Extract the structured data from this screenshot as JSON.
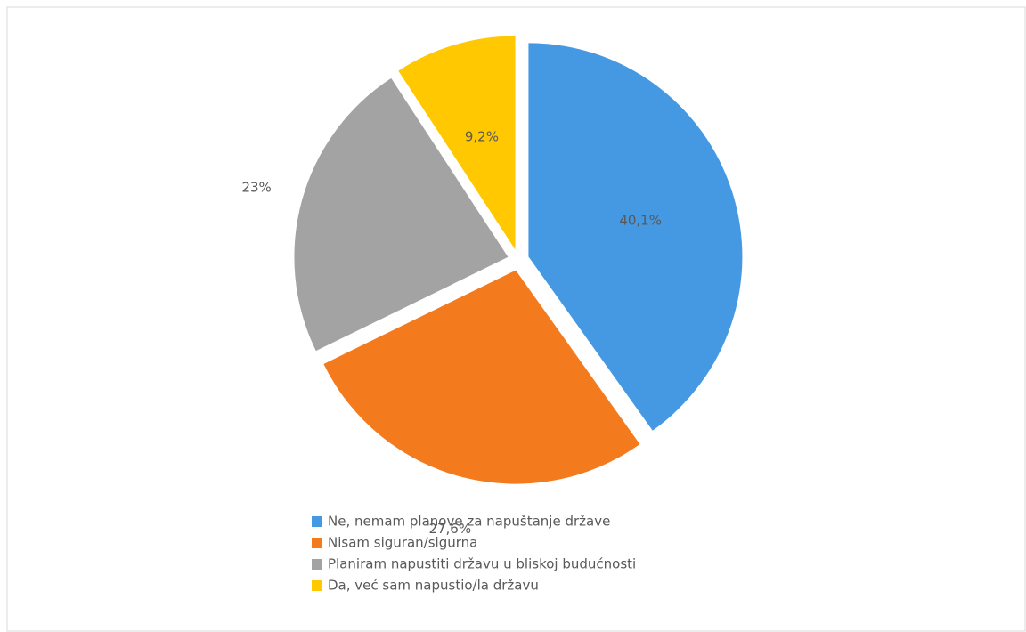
{
  "chart_data": {
    "type": "pie",
    "categories": [
      "Ne, nemam planove za napuštanje države",
      "Nisam siguran/sigurna",
      "Planiram napustiti državu u bliskoj budućnosti",
      "Da, već sam napustio/la državu"
    ],
    "values": [
      40.1,
      27.6,
      23,
      9.2
    ],
    "value_labels": [
      "40,1%",
      "27,6%",
      "23%",
      "9,2%"
    ],
    "colors": [
      "#4599e3",
      "#f47a1e",
      "#a3a3a3",
      "#ffc800"
    ],
    "legend": "bottom"
  }
}
